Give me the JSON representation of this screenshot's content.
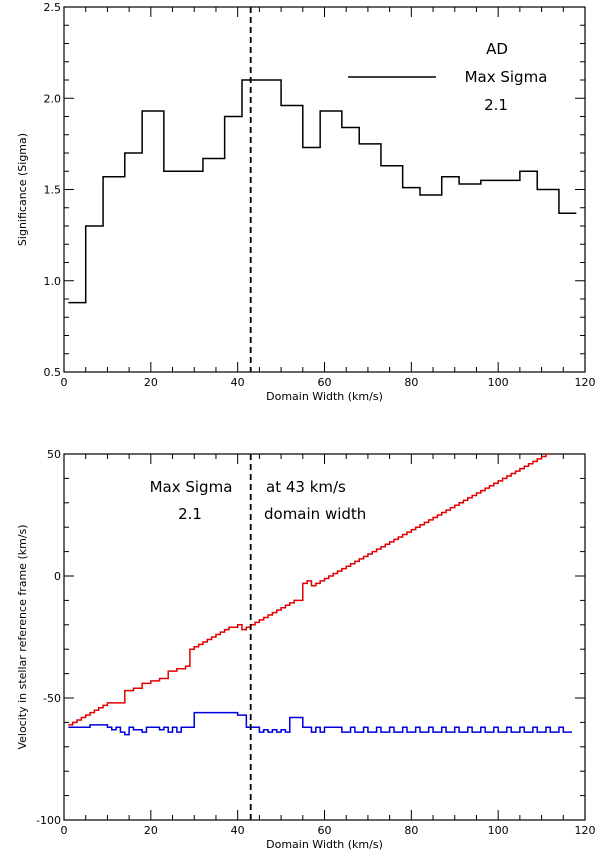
{
  "chart_data": [
    {
      "type": "line",
      "step": true,
      "xlabel": "Domain Width (km/s)",
      "ylabel": "Significance (Sigma)",
      "xlim": [
        0,
        120
      ],
      "ylim": [
        0.5,
        2.5
      ],
      "xticks": [
        0,
        20,
        40,
        60,
        80,
        100,
        120
      ],
      "yticks": [
        "0.5",
        "1.0",
        "1.5",
        "2.0",
        "2.5"
      ],
      "vline_x": 43,
      "annotations": [
        "AD",
        "Max Sigma",
        "2.1"
      ],
      "series": [
        {
          "color": "#000000",
          "x": [
            1,
            5,
            9,
            14,
            18,
            23,
            27,
            32,
            37,
            41,
            46,
            50,
            55,
            59,
            64,
            68,
            73,
            78,
            82,
            87,
            91,
            96,
            100,
            105,
            109,
            114,
            118
          ],
          "y": [
            0.88,
            1.3,
            1.57,
            1.7,
            1.93,
            1.6,
            1.6,
            1.67,
            1.9,
            2.1,
            2.1,
            1.96,
            1.73,
            1.93,
            1.84,
            1.75,
            1.63,
            1.51,
            1.47,
            1.57,
            1.53,
            1.55,
            1.55,
            1.6,
            1.5,
            1.37,
            1.37
          ]
        }
      ]
    },
    {
      "type": "line",
      "step": true,
      "xlabel": "Domain Width (km/s)",
      "ylabel": "Velocity in stellar reference frame (km/s)",
      "xlim": [
        0,
        120
      ],
      "ylim": [
        -100,
        50
      ],
      "xticks": [
        0,
        20,
        40,
        60,
        80,
        100,
        120
      ],
      "yticks": [
        "-100",
        "-50",
        "0",
        "50"
      ],
      "vline_x": 43,
      "annotations": [
        "Max Sigma",
        "2.1",
        "at 43 km/s",
        "domain width"
      ],
      "series": [
        {
          "color": "#e00000",
          "x": [
            1,
            2,
            3,
            4,
            5,
            6,
            7,
            8,
            9,
            10,
            12,
            14,
            16,
            18,
            20,
            22,
            24,
            26,
            28,
            29,
            30,
            31,
            32,
            33,
            34,
            35,
            36,
            37,
            38,
            39,
            40,
            41,
            42,
            43,
            44,
            45,
            46,
            47,
            48,
            49,
            50,
            51,
            52,
            53,
            54,
            55,
            56,
            57,
            58,
            59,
            60,
            61,
            62,
            63,
            64,
            65,
            66,
            67,
            68,
            69,
            70,
            71,
            72,
            73,
            74,
            75,
            76,
            77,
            78,
            79,
            80,
            81,
            82,
            83,
            84,
            85,
            86,
            87,
            88,
            89,
            90,
            91,
            92,
            93,
            94,
            95,
            96,
            97,
            98,
            99,
            100,
            101,
            102,
            103,
            104,
            105,
            106,
            107,
            108,
            109,
            110,
            111,
            112,
            113,
            114,
            115,
            116
          ],
          "y": [
            -61,
            -60,
            -59,
            -58,
            -57,
            -56,
            -55,
            -54,
            -53,
            -52,
            -52,
            -47,
            -46,
            -44,
            -43,
            -42,
            -39,
            -38,
            -37,
            -30,
            -29,
            -28,
            -27,
            -26,
            -25,
            -24,
            -23,
            -22,
            -21,
            -21,
            -20,
            -22,
            -21,
            -20,
            -19,
            -18,
            -17,
            -16,
            -15,
            -14,
            -13,
            -12,
            -11,
            -10,
            -10,
            -3,
            -2,
            -4,
            -3,
            -2,
            -1,
            0,
            1,
            2,
            3,
            4,
            5,
            6,
            7,
            8,
            9,
            10,
            11,
            12,
            13,
            14,
            15,
            16,
            17,
            18,
            19,
            20,
            21,
            22,
            23,
            24,
            25,
            26,
            27,
            28,
            29,
            30,
            31,
            32,
            33,
            34,
            35,
            36,
            37,
            38,
            39,
            40,
            41,
            42,
            43,
            44,
            45,
            46,
            47,
            48,
            49,
            50,
            51,
            51,
            51,
            51,
            51
          ]
        },
        {
          "color": "#0000dd",
          "x": [
            1,
            3,
            6,
            9,
            10,
            11,
            12,
            13,
            14,
            15,
            16,
            17,
            18,
            19,
            20,
            22,
            23,
            24,
            25,
            26,
            27,
            28,
            29,
            30,
            35,
            40,
            42,
            44,
            45,
            46,
            47,
            48,
            49,
            50,
            51,
            52,
            55,
            57,
            58,
            59,
            60,
            61,
            63,
            64,
            66,
            67,
            69,
            70,
            72,
            73,
            75,
            76,
            78,
            79,
            81,
            82,
            84,
            85,
            87,
            88,
            90,
            91,
            93,
            94,
            96,
            97,
            99,
            100,
            102,
            103,
            105,
            106,
            108,
            109,
            111,
            112,
            114,
            115,
            117
          ],
          "y": [
            -62,
            -62,
            -61,
            -61,
            -62,
            -63,
            -62,
            -64,
            -65,
            -62,
            -63,
            -63,
            -64,
            -62,
            -62,
            -63,
            -62,
            -64,
            -62,
            -64,
            -62,
            -62,
            -62,
            -56,
            -56,
            -57,
            -62,
            -62,
            -64,
            -63,
            -64,
            -63,
            -64,
            -63,
            -64,
            -58,
            -62,
            -64,
            -62,
            -64,
            -62,
            -62,
            -62,
            -64,
            -62,
            -64,
            -62,
            -64,
            -62,
            -64,
            -62,
            -64,
            -62,
            -64,
            -62,
            -64,
            -62,
            -64,
            -62,
            -64,
            -62,
            -64,
            -62,
            -64,
            -62,
            -64,
            -62,
            -64,
            -62,
            -64,
            -62,
            -64,
            -62,
            -64,
            -62,
            -64,
            -62,
            -64,
            -64
          ]
        }
      ]
    }
  ]
}
